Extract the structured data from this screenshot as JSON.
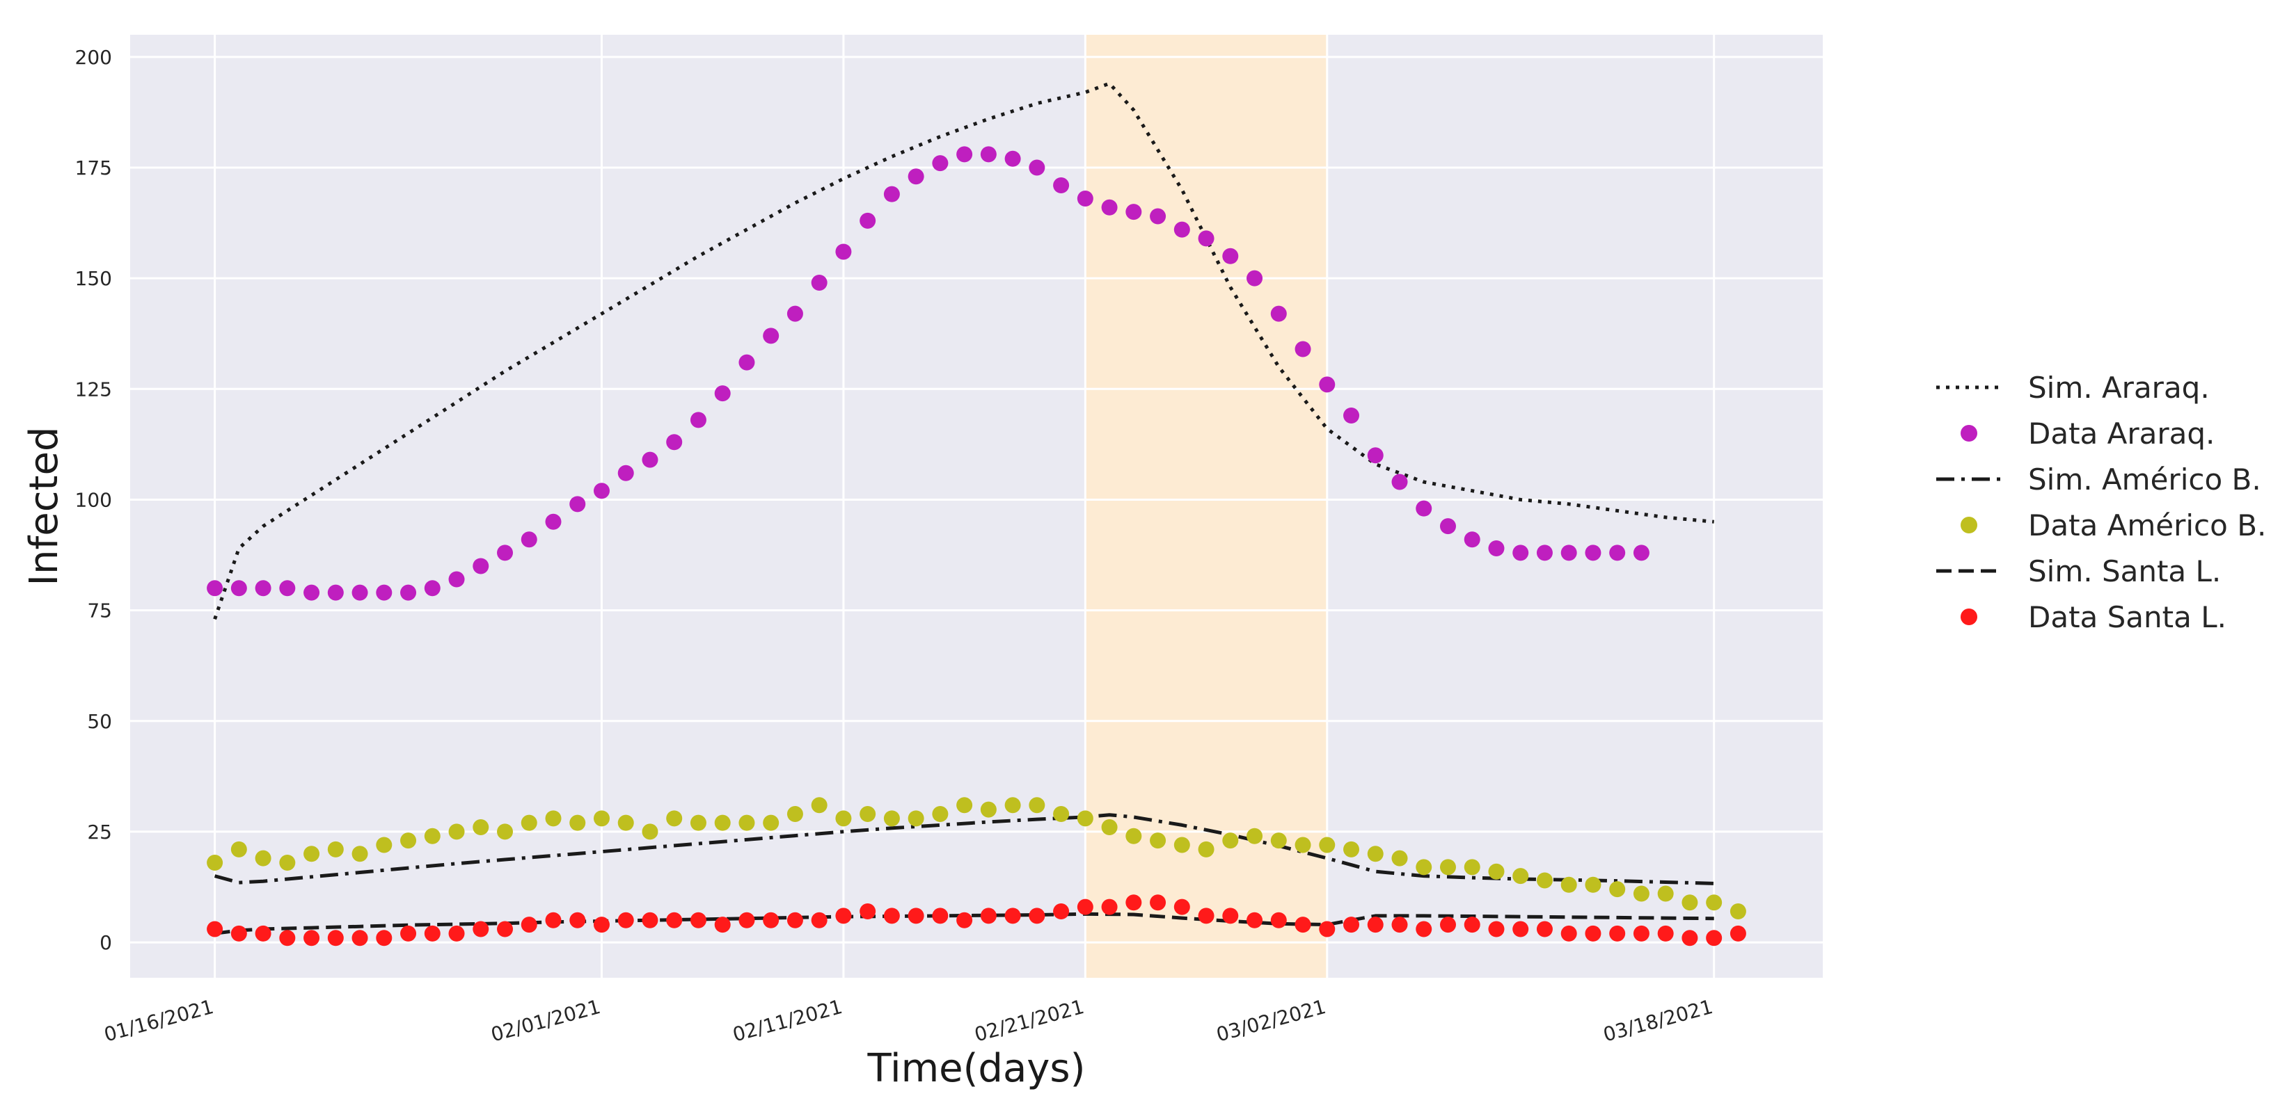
{
  "chart_data": {
    "type": "line",
    "title": "",
    "xlabel": "Time(days)",
    "ylabel": "Infected",
    "ylim": [
      -8,
      205
    ],
    "xlim": [
      -3.5,
      66.5
    ],
    "grid": true,
    "legend_position": "right",
    "y_ticks": [
      0,
      25,
      50,
      75,
      100,
      125,
      150,
      175,
      200
    ],
    "x_ticks": [
      {
        "day": 0,
        "label": "01/16/2021"
      },
      {
        "day": 16,
        "label": "02/01/2021"
      },
      {
        "day": 26,
        "label": "02/11/2021"
      },
      {
        "day": 36,
        "label": "02/21/2021"
      },
      {
        "day": 46,
        "label": "03/02/2021"
      },
      {
        "day": 62,
        "label": "03/18/2021"
      }
    ],
    "highlight_span": {
      "from_day": 36,
      "to_day": 46,
      "color": "#fdebd3"
    },
    "series": [
      {
        "name": "Sim. Araraq.",
        "kind": "line",
        "style": "dotted",
        "color": "#1a1a1a",
        "x": [
          0,
          1,
          2,
          4,
          6,
          8,
          10,
          12,
          14,
          16,
          18,
          20,
          22,
          24,
          26,
          28,
          30,
          32,
          34,
          36,
          37,
          38,
          40,
          42,
          44,
          46,
          48,
          50,
          52,
          54,
          56,
          58,
          60,
          62
        ],
        "y": [
          73,
          89,
          94,
          101,
          108,
          115,
          122,
          129,
          135.5,
          142,
          148.5,
          155,
          161,
          167,
          172.5,
          177.5,
          182,
          186,
          189.5,
          192,
          194,
          188,
          170,
          148,
          130,
          116,
          108,
          104,
          102,
          100,
          99,
          97.5,
          96,
          95
        ]
      },
      {
        "name": "Data Araraq.",
        "kind": "scatter",
        "color": "#bf1fbf",
        "x": [
          0,
          1,
          2,
          3,
          4,
          5,
          6,
          7,
          8,
          9,
          10,
          11,
          12,
          13,
          14,
          15,
          16,
          17,
          18,
          19,
          20,
          21,
          22,
          23,
          24,
          25,
          26,
          27,
          28,
          29,
          30,
          31,
          32,
          33,
          34,
          35,
          36,
          37,
          38,
          39,
          40,
          41,
          42,
          43,
          44,
          45,
          46,
          47,
          48,
          49,
          50,
          51,
          52,
          53,
          54,
          55,
          56,
          57,
          58,
          59
        ],
        "y": [
          80,
          80,
          80,
          80,
          79,
          79,
          79,
          79,
          79,
          80,
          82,
          85,
          88,
          91,
          95,
          99,
          102,
          106,
          109,
          113,
          118,
          124,
          131,
          137,
          142,
          149,
          156,
          163,
          169,
          173,
          176,
          178,
          178,
          177,
          175,
          171,
          168,
          166,
          165,
          164,
          161,
          159,
          155,
          150,
          142,
          134,
          126,
          119,
          110,
          104,
          98,
          94,
          91,
          89,
          88,
          88,
          88,
          88,
          88,
          88
        ]
      },
      {
        "name": "Sim. Américo B.",
        "kind": "line",
        "style": "dashdot",
        "color": "#1a1a1a",
        "x": [
          0,
          1,
          2,
          4,
          6,
          8,
          10,
          12,
          14,
          16,
          18,
          20,
          22,
          24,
          26,
          28,
          30,
          32,
          34,
          36,
          37,
          38,
          40,
          42,
          44,
          46,
          48,
          50,
          52,
          54,
          56,
          58,
          60,
          62
        ],
        "y": [
          15,
          13.5,
          13.8,
          14.8,
          15.8,
          16.8,
          17.8,
          18.7,
          19.6,
          20.5,
          21.4,
          22.3,
          23.2,
          24.1,
          25,
          25.8,
          26.5,
          27.2,
          27.8,
          28.3,
          28.8,
          28.3,
          26.5,
          24.3,
          21.8,
          19,
          16,
          15,
          14.6,
          14.3,
          14.1,
          13.9,
          13.6,
          13.3
        ]
      },
      {
        "name": "Data Américo B.",
        "kind": "scatter",
        "color": "#bfbf1f",
        "x": [
          0,
          1,
          2,
          3,
          4,
          5,
          6,
          7,
          8,
          9,
          10,
          11,
          12,
          13,
          14,
          15,
          16,
          17,
          18,
          19,
          20,
          21,
          22,
          23,
          24,
          25,
          26,
          27,
          28,
          29,
          30,
          31,
          32,
          33,
          34,
          35,
          36,
          37,
          38,
          39,
          40,
          41,
          42,
          43,
          44,
          45,
          46,
          47,
          48,
          49,
          50,
          51,
          52,
          53,
          54,
          55,
          56,
          57,
          58,
          59,
          60,
          61,
          62,
          63
        ],
        "y": [
          18,
          21,
          19,
          18,
          20,
          21,
          20,
          22,
          23,
          24,
          25,
          26,
          25,
          27,
          28,
          27,
          28,
          27,
          25,
          28,
          27,
          27,
          27,
          27,
          29,
          31,
          28,
          29,
          28,
          28,
          29,
          31,
          30,
          31,
          31,
          29,
          28,
          26,
          24,
          23,
          22,
          21,
          23,
          24,
          23,
          22,
          22,
          21,
          20,
          19,
          17,
          17,
          17,
          16,
          15,
          14,
          13,
          13,
          12,
          11,
          11,
          9,
          9,
          7
        ]
      },
      {
        "name": "Sim. Santa L.",
        "kind": "line",
        "style": "dashed",
        "color": "#1a1a1a",
        "x": [
          0,
          1,
          2,
          4,
          6,
          8,
          10,
          12,
          14,
          16,
          18,
          20,
          22,
          24,
          26,
          28,
          30,
          32,
          34,
          36,
          38,
          40,
          42,
          44,
          46,
          47,
          48,
          50,
          52,
          54,
          56,
          58,
          60,
          62
        ],
        "y": [
          2,
          2.7,
          3,
          3.3,
          3.6,
          3.9,
          4.1,
          4.3,
          4.6,
          4.8,
          5,
          5.2,
          5.4,
          5.6,
          5.8,
          5.9,
          6,
          6.1,
          6.2,
          6.4,
          6.3,
          5.5,
          4.8,
          4.2,
          4,
          5,
          6,
          6,
          5.9,
          5.8,
          5.7,
          5.6,
          5.5,
          5.4
        ]
      },
      {
        "name": "Data Santa L.",
        "kind": "scatter",
        "color": "#ff1a1a",
        "x": [
          0,
          1,
          2,
          3,
          4,
          5,
          6,
          7,
          8,
          9,
          10,
          11,
          12,
          13,
          14,
          15,
          16,
          17,
          18,
          19,
          20,
          21,
          22,
          23,
          24,
          25,
          26,
          27,
          28,
          29,
          30,
          31,
          32,
          33,
          34,
          35,
          36,
          37,
          38,
          39,
          40,
          41,
          42,
          43,
          44,
          45,
          46,
          47,
          48,
          49,
          50,
          51,
          52,
          53,
          54,
          55,
          56,
          57,
          58,
          59,
          60,
          61,
          62,
          63
        ],
        "y": [
          3,
          2,
          2,
          1,
          1,
          1,
          1,
          1,
          2,
          2,
          2,
          3,
          3,
          4,
          5,
          5,
          4,
          5,
          5,
          5,
          5,
          4,
          5,
          5,
          5,
          5,
          6,
          7,
          6,
          6,
          6,
          5,
          6,
          6,
          6,
          7,
          8,
          8,
          9,
          9,
          8,
          6,
          6,
          5,
          5,
          4,
          3,
          4,
          4,
          4,
          3,
          4,
          4,
          3,
          3,
          3,
          2,
          2,
          2,
          2,
          2,
          1,
          1,
          2
        ]
      }
    ]
  }
}
